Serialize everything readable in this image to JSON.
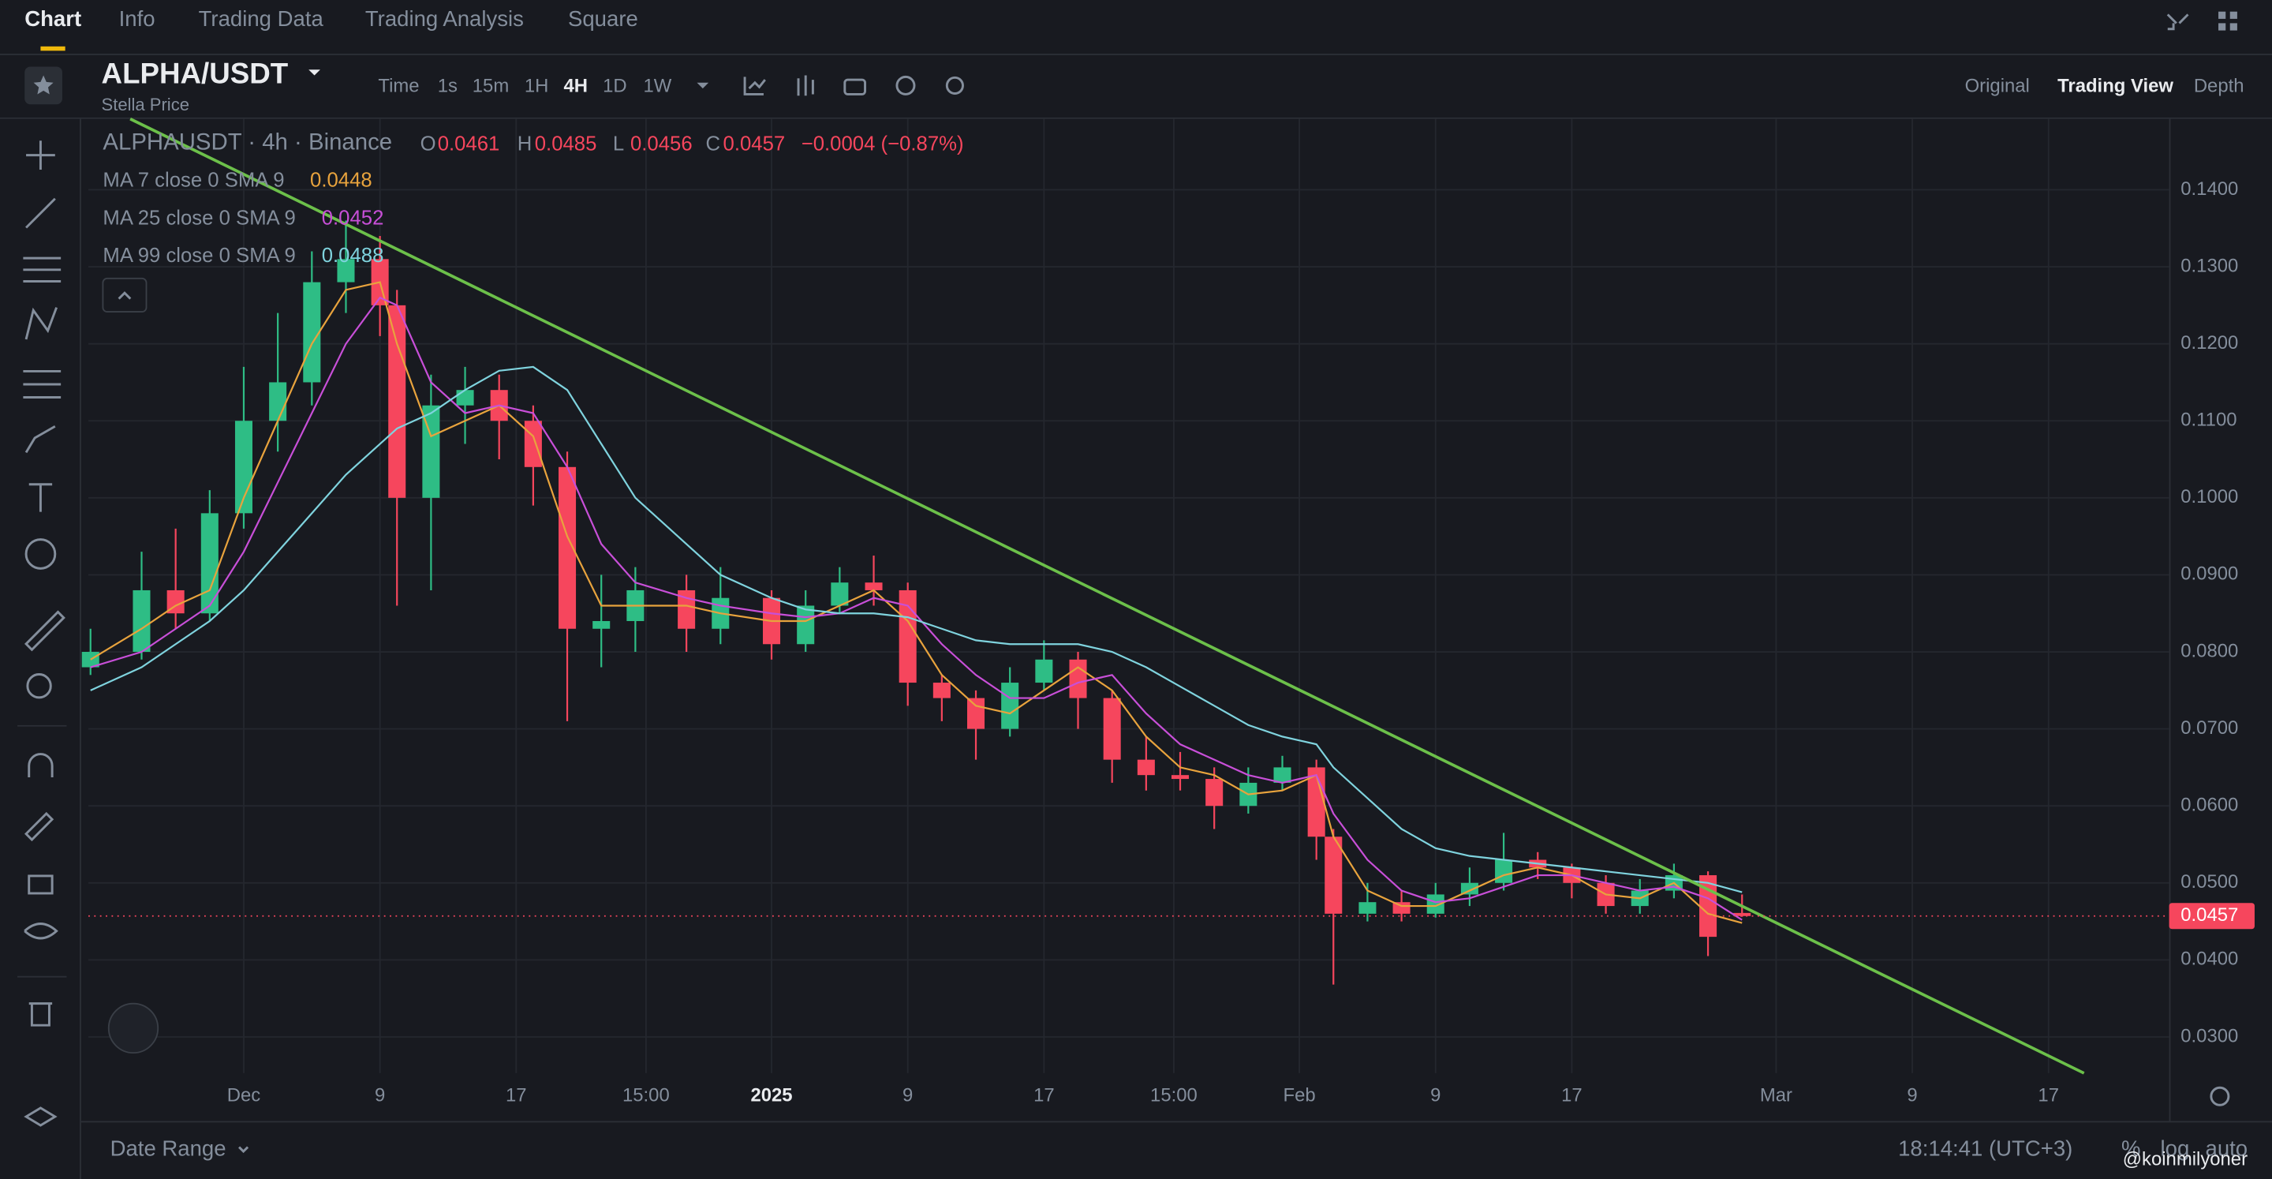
{
  "tabs": [
    "Chart",
    "Info",
    "Trading Data",
    "Trading Analysis",
    "Square"
  ],
  "header": {
    "symbol": "ALPHA/USDT",
    "subtitle": "Stella Price",
    "intervals": [
      "Time",
      "1s",
      "15m",
      "1H",
      "4H",
      "1D",
      "1W"
    ],
    "views": [
      "Original",
      "Trading View",
      "Depth"
    ]
  },
  "legend": {
    "title": "ALPHAUSDT · 4h · Binance",
    "ohlc": [
      {
        "label": "O",
        "value": 0.0461
      },
      {
        "label": "H",
        "value": 0.0485
      },
      {
        "label": "L",
        "value": 0.0456
      },
      {
        "label": "C",
        "value": 0.0457
      }
    ],
    "change": "−0.0004 (−0.87%)"
  },
  "footer": {
    "date_range": "Date Range",
    "clock": "18:14:41 (UTC+3)",
    "percent": "%",
    "log": "log",
    "auto": "auto",
    "watermark": "@koinmilyoner"
  },
  "chart_data": {
    "type": "candlestick",
    "up_color": "#2ebd85",
    "down_color": "#f6465d",
    "grid": true,
    "x": [
      "2024-11-22",
      "2024-11-25",
      "2024-11-27",
      "2024-11-29",
      "2024-12-01",
      "2024-12-03",
      "2024-12-05",
      "2024-12-07",
      "2024-12-09",
      "2024-12-10",
      "2024-12-12",
      "2024-12-14",
      "2024-12-16",
      "2024-12-18",
      "2024-12-20",
      "2024-12-22",
      "2024-12-24",
      "2024-12-27",
      "2024-12-29",
      "2025-01-01",
      "2025-01-03",
      "2025-01-05",
      "2025-01-07",
      "2025-01-09",
      "2025-01-11",
      "2025-01-13",
      "2025-01-15",
      "2025-01-17",
      "2025-01-19",
      "2025-01-21",
      "2025-01-23",
      "2025-01-25",
      "2025-01-27",
      "2025-01-29",
      "2025-01-31",
      "2025-02-02",
      "2025-02-03",
      "2025-02-05",
      "2025-02-07",
      "2025-02-09",
      "2025-02-11",
      "2025-02-13",
      "2025-02-15",
      "2025-02-17",
      "2025-02-19",
      "2025-02-21",
      "2025-02-23",
      "2025-02-25",
      "2025-02-27"
    ],
    "open": [
      0.078,
      0.08,
      0.088,
      0.085,
      0.098,
      0.11,
      0.115,
      0.128,
      0.131,
      0.125,
      0.1,
      0.112,
      0.114,
      0.11,
      0.104,
      0.083,
      0.084,
      0.088,
      0.083,
      0.087,
      0.081,
      0.086,
      0.089,
      0.088,
      0.076,
      0.074,
      0.07,
      0.076,
      0.079,
      0.074,
      0.066,
      0.064,
      0.0635,
      0.06,
      0.063,
      0.065,
      0.056,
      0.046,
      0.0475,
      0.046,
      0.0485,
      0.05,
      0.053,
      0.052,
      0.05,
      0.047,
      0.049,
      0.051,
      0.0461
    ],
    "high": [
      0.083,
      0.093,
      0.096,
      0.101,
      0.117,
      0.124,
      0.132,
      0.136,
      0.134,
      0.127,
      0.116,
      0.117,
      0.116,
      0.112,
      0.106,
      0.09,
      0.091,
      0.09,
      0.091,
      0.088,
      0.088,
      0.091,
      0.0925,
      0.089,
      0.077,
      0.075,
      0.078,
      0.0815,
      0.08,
      0.075,
      0.069,
      0.067,
      0.065,
      0.065,
      0.0665,
      0.066,
      0.057,
      0.05,
      0.049,
      0.05,
      0.052,
      0.0565,
      0.054,
      0.0525,
      0.051,
      0.0505,
      0.0525,
      0.0515,
      0.0485
    ],
    "low": [
      0.077,
      0.079,
      0.083,
      0.084,
      0.096,
      0.106,
      0.112,
      0.124,
      0.121,
      0.086,
      0.088,
      0.107,
      0.105,
      0.099,
      0.071,
      0.078,
      0.08,
      0.08,
      0.081,
      0.079,
      0.08,
      0.085,
      0.086,
      0.073,
      0.071,
      0.066,
      0.069,
      0.075,
      0.07,
      0.063,
      0.062,
      0.062,
      0.057,
      0.059,
      0.062,
      0.053,
      0.0368,
      0.045,
      0.045,
      0.0455,
      0.047,
      0.049,
      0.0505,
      0.048,
      0.046,
      0.046,
      0.048,
      0.0405,
      0.0456
    ],
    "close": [
      0.08,
      0.088,
      0.085,
      0.098,
      0.11,
      0.115,
      0.128,
      0.131,
      0.125,
      0.1,
      0.112,
      0.114,
      0.11,
      0.104,
      0.083,
      0.084,
      0.088,
      0.083,
      0.087,
      0.081,
      0.086,
      0.089,
      0.088,
      0.076,
      0.074,
      0.07,
      0.076,
      0.079,
      0.074,
      0.066,
      0.064,
      0.0635,
      0.06,
      0.063,
      0.065,
      0.056,
      0.046,
      0.0475,
      0.046,
      0.0485,
      0.05,
      0.053,
      0.052,
      0.05,
      0.047,
      0.049,
      0.051,
      0.043,
      0.0457
    ],
    "series": [
      {
        "name": "MA 7 close 0 SMA 9",
        "color": "#e8a33d",
        "last": 0.0448,
        "values": [
          0.079,
          0.083,
          0.086,
          0.088,
          0.1,
          0.11,
          0.12,
          0.127,
          0.128,
          0.12,
          0.108,
          0.11,
          0.112,
          0.108,
          0.095,
          0.086,
          0.086,
          0.086,
          0.085,
          0.084,
          0.084,
          0.086,
          0.088,
          0.084,
          0.077,
          0.073,
          0.072,
          0.075,
          0.078,
          0.075,
          0.069,
          0.065,
          0.064,
          0.0615,
          0.062,
          0.064,
          0.056,
          0.049,
          0.047,
          0.047,
          0.049,
          0.051,
          0.052,
          0.051,
          0.0485,
          0.048,
          0.05,
          0.046,
          0.0448
        ]
      },
      {
        "name": "MA 25 close 0 SMA 9",
        "color": "#c84fd8",
        "last": 0.0452,
        "values": [
          0.078,
          0.08,
          0.083,
          0.086,
          0.093,
          0.102,
          0.111,
          0.12,
          0.126,
          0.125,
          0.115,
          0.111,
          0.112,
          0.111,
          0.104,
          0.094,
          0.089,
          0.087,
          0.086,
          0.085,
          0.0845,
          0.085,
          0.087,
          0.086,
          0.081,
          0.077,
          0.074,
          0.074,
          0.076,
          0.077,
          0.072,
          0.068,
          0.066,
          0.064,
          0.063,
          0.064,
          0.059,
          0.053,
          0.049,
          0.0475,
          0.048,
          0.0495,
          0.051,
          0.051,
          0.05,
          0.049,
          0.0495,
          0.048,
          0.0452
        ]
      },
      {
        "name": "MA 99 close 0 SMA 9",
        "color": "#7fd3de",
        "last": 0.0488,
        "values": [
          0.075,
          0.078,
          0.081,
          0.084,
          0.088,
          0.093,
          0.098,
          0.103,
          0.107,
          0.109,
          0.111,
          0.114,
          0.1165,
          0.117,
          0.114,
          0.107,
          0.1,
          0.094,
          0.09,
          0.087,
          0.0855,
          0.085,
          0.085,
          0.0845,
          0.083,
          0.0815,
          0.081,
          0.081,
          0.081,
          0.08,
          0.078,
          0.0755,
          0.073,
          0.0705,
          0.069,
          0.068,
          0.065,
          0.061,
          0.057,
          0.0545,
          0.0535,
          0.053,
          0.0525,
          0.052,
          0.0515,
          0.051,
          0.0505,
          0.05,
          0.0488
        ]
      }
    ],
    "trendline": {
      "color": "#6cc04a",
      "x": [
        "2024-11-24T08:00",
        "2025-03-19T02:00"
      ],
      "y": [
        0.1492,
        0.0253
      ]
    },
    "last_price": {
      "value": 0.0457,
      "label": "0.0457"
    },
    "xlim": [
      "2024-11-21T21:00",
      "2025-03-24T02:00"
    ],
    "xticks": [
      {
        "value": "2024-12-01",
        "label": "Dec"
      },
      {
        "value": "2024-12-09",
        "label": "9"
      },
      {
        "value": "2024-12-17",
        "label": "17"
      },
      {
        "value": "2024-12-24T15:00",
        "label": "15:00"
      },
      {
        "value": "2025-01-01",
        "label": "2025"
      },
      {
        "value": "2025-01-09",
        "label": "9"
      },
      {
        "value": "2025-01-17",
        "label": "17"
      },
      {
        "value": "2025-01-24T15:00",
        "label": "15:00"
      },
      {
        "value": "2025-02-01",
        "label": "Feb"
      },
      {
        "value": "2025-02-09",
        "label": "9"
      },
      {
        "value": "2025-02-17",
        "label": "17"
      },
      {
        "value": "2025-03-01",
        "label": "Mar"
      },
      {
        "value": "2025-03-09",
        "label": "9"
      },
      {
        "value": "2025-03-17",
        "label": "17"
      }
    ],
    "ylim": [
      0.0253,
      0.1492
    ],
    "yticks": [
      {
        "value": 0.14,
        "label": "0.1400"
      },
      {
        "value": 0.13,
        "label": "0.1300"
      },
      {
        "value": 0.12,
        "label": "0.1200"
      },
      {
        "value": 0.11,
        "label": "0.1100"
      },
      {
        "value": 0.1,
        "label": "0.1000"
      },
      {
        "value": 0.09,
        "label": "0.0900"
      },
      {
        "value": 0.08,
        "label": "0.0800"
      },
      {
        "value": 0.07,
        "label": "0.0700"
      },
      {
        "value": 0.06,
        "label": "0.0600"
      },
      {
        "value": 0.05,
        "label": "0.0500"
      },
      {
        "value": 0.04,
        "label": "0.0400"
      },
      {
        "value": 0.03,
        "label": "0.0300"
      }
    ]
  }
}
